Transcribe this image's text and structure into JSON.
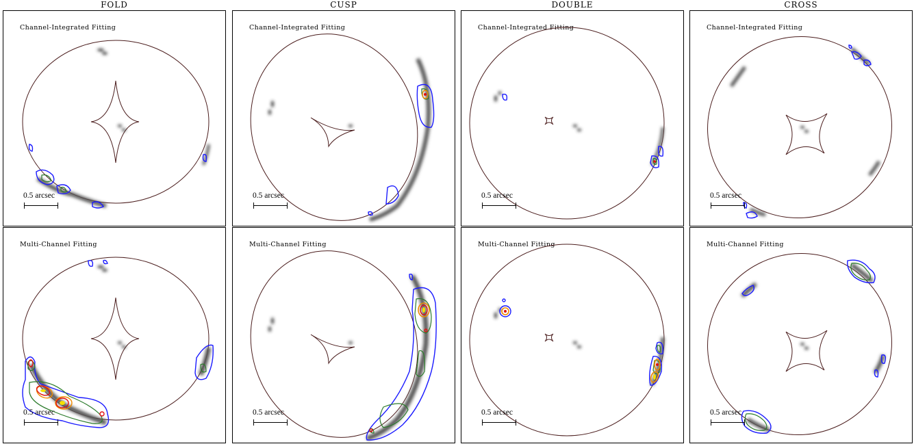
{
  "columns": [
    {
      "title": "FOLD"
    },
    {
      "title": "CUSP"
    },
    {
      "title": "DOUBLE"
    },
    {
      "title": "CROSS"
    }
  ],
  "rows": [
    {
      "label": "Channel-Integrated Fitting"
    },
    {
      "label": "Multi-Channel Fitting"
    }
  ],
  "scalebar": {
    "label": "0.5 arcsec"
  },
  "colors": {
    "critical_curve": "#4a1c1c",
    "contour_blue": "#1a1aff",
    "contour_green": "#2a7a2a",
    "contour_orange": "#f08a00",
    "contour_red": "#e01010",
    "contour_yellow": "#f5e000",
    "image_gray": "#555555"
  }
}
